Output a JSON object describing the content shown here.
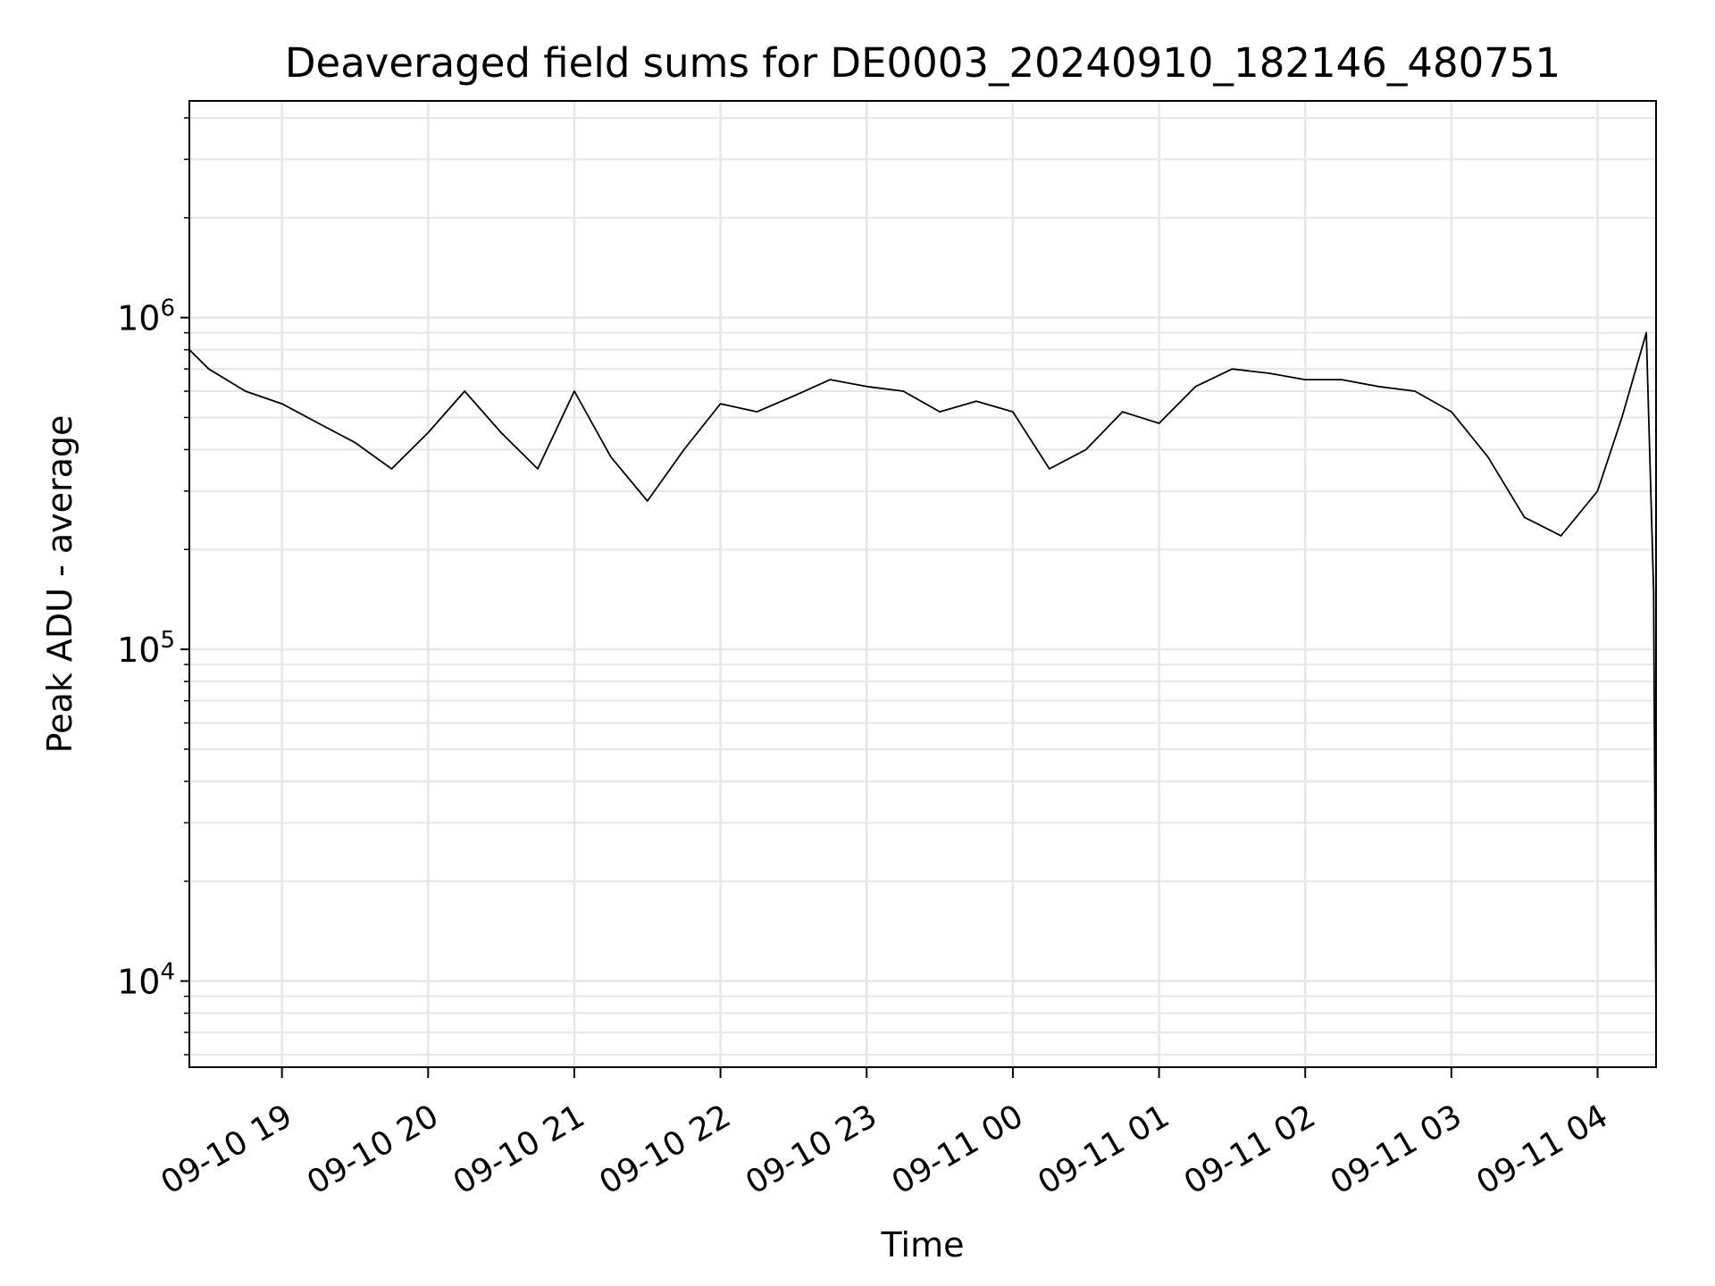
{
  "chart_data": {
    "type": "line",
    "title": "Deaveraged field sums for DE0003_20240910_182146_480751",
    "xlabel": "Time",
    "ylabel": "Peak ADU - average",
    "y_scale": "log",
    "ylim": [
      5500,
      4500000
    ],
    "xlim": [
      "2024-09-10 18:22",
      "2024-09-11 04:24"
    ],
    "grid": true,
    "line_color": "#000000",
    "x_ticks": [
      {
        "t": "2024-09-10 19:00",
        "label": "09-10 19"
      },
      {
        "t": "2024-09-10 20:00",
        "label": "09-10 20"
      },
      {
        "t": "2024-09-10 21:00",
        "label": "09-10 21"
      },
      {
        "t": "2024-09-10 22:00",
        "label": "09-10 22"
      },
      {
        "t": "2024-09-10 23:00",
        "label": "09-10 23"
      },
      {
        "t": "2024-09-11 00:00",
        "label": "09-11 00"
      },
      {
        "t": "2024-09-11 01:00",
        "label": "09-11 01"
      },
      {
        "t": "2024-09-11 02:00",
        "label": "09-11 02"
      },
      {
        "t": "2024-09-11 03:00",
        "label": "09-11 03"
      },
      {
        "t": "2024-09-11 04:00",
        "label": "09-11 04"
      }
    ],
    "y_ticks": [
      {
        "value": 10000,
        "base": "10",
        "exp": "4"
      },
      {
        "value": 100000,
        "base": "10",
        "exp": "5"
      },
      {
        "value": 1000000,
        "base": "10",
        "exp": "6"
      }
    ],
    "series": [
      {
        "name": "",
        "x": [
          "2024-09-10 18:22",
          "2024-09-10 18:30",
          "2024-09-10 18:45",
          "2024-09-10 19:00",
          "2024-09-10 19:15",
          "2024-09-10 19:30",
          "2024-09-10 19:45",
          "2024-09-10 20:00",
          "2024-09-10 20:15",
          "2024-09-10 20:30",
          "2024-09-10 20:45",
          "2024-09-10 21:00",
          "2024-09-10 21:15",
          "2024-09-10 21:30",
          "2024-09-10 21:45",
          "2024-09-10 22:00",
          "2024-09-10 22:15",
          "2024-09-10 22:30",
          "2024-09-10 22:45",
          "2024-09-10 23:00",
          "2024-09-10 23:15",
          "2024-09-10 23:30",
          "2024-09-10 23:45",
          "2024-09-11 00:00",
          "2024-09-11 00:15",
          "2024-09-11 00:30",
          "2024-09-11 00:45",
          "2024-09-11 01:00",
          "2024-09-11 01:15",
          "2024-09-11 01:30",
          "2024-09-11 01:45",
          "2024-09-11 02:00",
          "2024-09-11 02:15",
          "2024-09-11 02:30",
          "2024-09-11 02:45",
          "2024-09-11 03:00",
          "2024-09-11 03:15",
          "2024-09-11 03:30",
          "2024-09-11 03:45",
          "2024-09-11 04:00",
          "2024-09-11 04:10",
          "2024-09-11 04:20",
          "2024-09-11 04:23",
          "2024-09-11 04:24"
        ],
        "y": [
          800000,
          700000,
          600000,
          550000,
          480000,
          420000,
          350000,
          450000,
          600000,
          450000,
          350000,
          600000,
          380000,
          280000,
          400000,
          550000,
          520000,
          580000,
          650000,
          620000,
          600000,
          520000,
          560000,
          520000,
          350000,
          400000,
          520000,
          480000,
          620000,
          700000,
          680000,
          650000,
          650000,
          620000,
          600000,
          520000,
          380000,
          250000,
          220000,
          300000,
          500000,
          900000,
          150000,
          7500
        ]
      }
    ]
  }
}
